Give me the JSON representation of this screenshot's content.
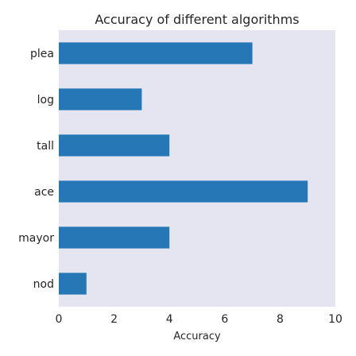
{
  "chart_data": {
    "type": "bar",
    "orientation": "horizontal",
    "title": "Accuracy of different algorithms",
    "xlabel": "Accuracy",
    "ylabel": "",
    "categories": [
      "plea",
      "log",
      "tall",
      "ace",
      "mayor",
      "nod"
    ],
    "values": [
      7,
      3,
      4,
      9,
      4,
      1
    ],
    "xlim": [
      0,
      10
    ],
    "xticks": [
      "0",
      "2",
      "4",
      "6",
      "8",
      "10"
    ],
    "grid": false,
    "legend": "none",
    "colors": {
      "bar": "#2677b6",
      "plot_background": "#e5e5f1"
    }
  }
}
